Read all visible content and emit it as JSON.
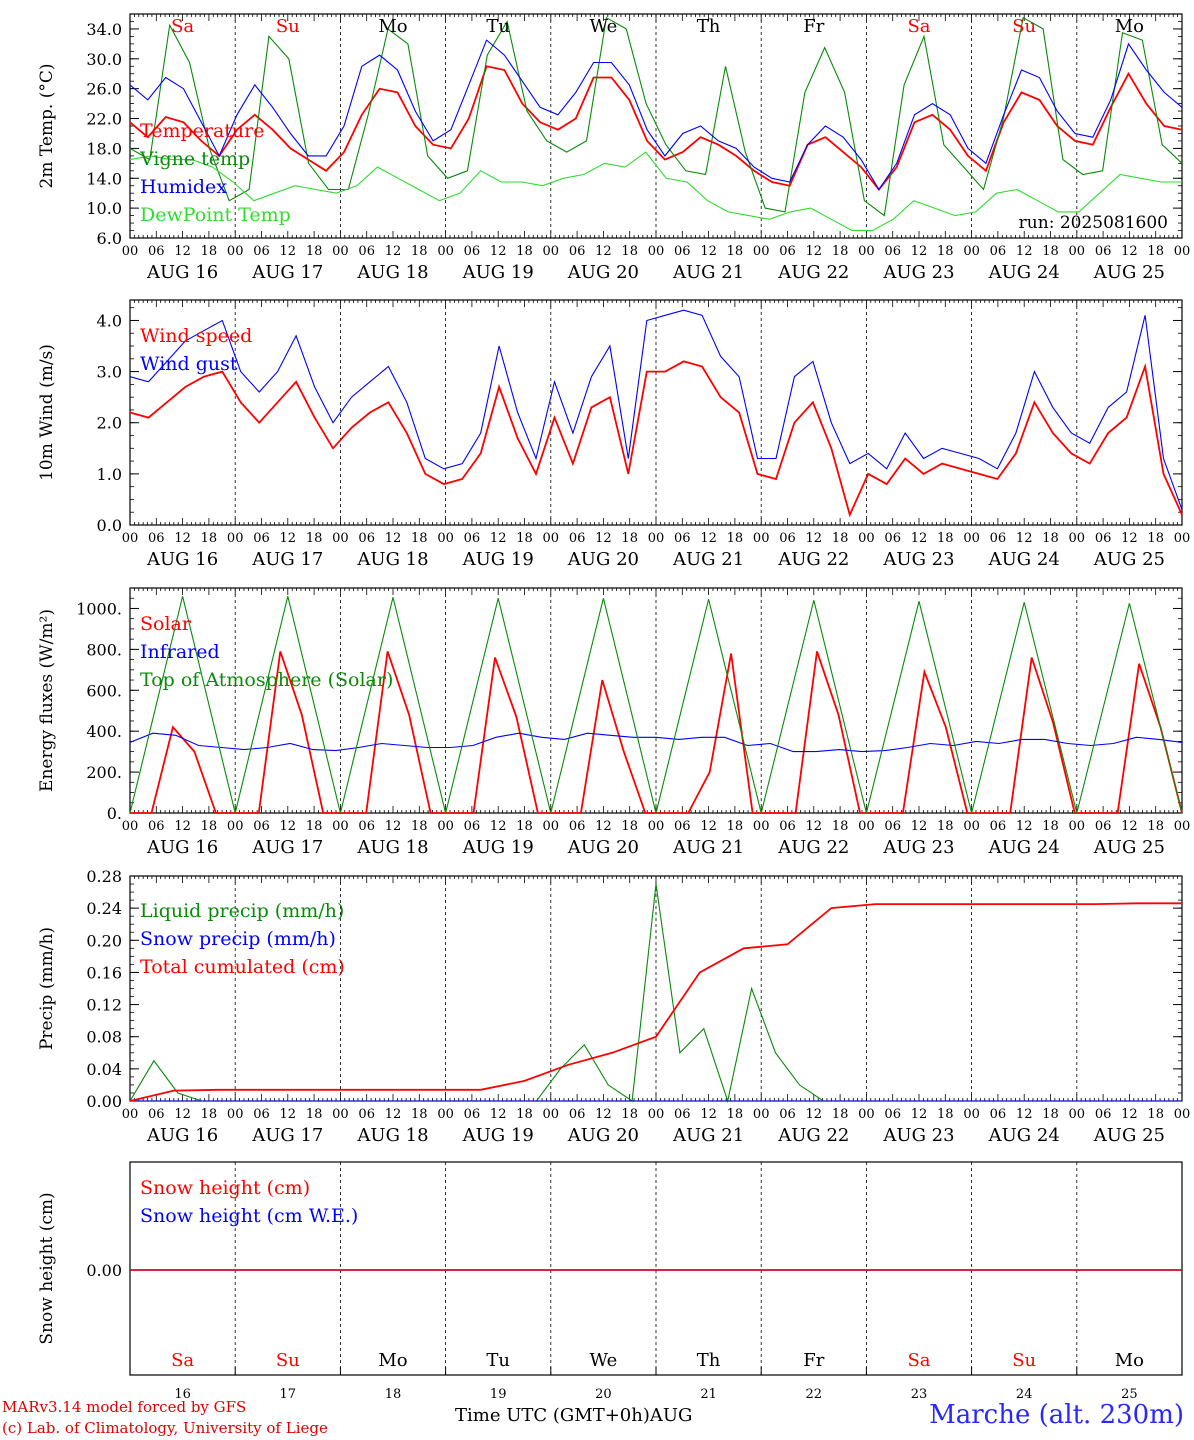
{
  "colors": {
    "red": "#ff0000",
    "green": "#0a8a0a",
    "blue": "#0000ff",
    "lightgreen": "#2fdc2f",
    "black": "#000000",
    "station": "#2828ff"
  },
  "footer": {
    "credit_line1": "MARv3.14 model forced by GFS",
    "credit_line2": "(c) Lab. of Climatology, University of Liege",
    "x_title": "Time UTC (GMT+0h)AUG",
    "station": "Marche (alt. 230m)"
  },
  "chart_data": [
    {
      "type": "line",
      "ylabel": "2m Temp. (°C)",
      "ylim": [
        6,
        36
      ],
      "yticks": [
        "6.0",
        "10.0",
        "14.0",
        "18.0",
        "22.0",
        "26.0",
        "30.0",
        "34.0"
      ],
      "x_hours_tick_labels": [
        "00",
        "06",
        "12",
        "18"
      ],
      "date_labels": [
        "AUG 16",
        "AUG 17",
        "AUG 18",
        "AUG 19",
        "AUG 20",
        "AUG 21",
        "AUG 22",
        "AUG 23",
        "AUG 24",
        "AUG 25"
      ],
      "weekday_labels": [
        "Sa",
        "Su",
        "Mo",
        "Tu",
        "We",
        "Th",
        "Fr",
        "Sa",
        "Su",
        "Mo"
      ],
      "weekday_colors": [
        "red",
        "red",
        "black",
        "black",
        "black",
        "black",
        "black",
        "red",
        "red",
        "black"
      ],
      "annotation": "run: 2025081600",
      "x_hour_step": 6,
      "series": [
        {
          "name": "Temperature",
          "color": "red",
          "values": [
            21.5,
            19.5,
            22.2,
            21.5,
            19.0,
            17.0,
            20.5,
            22.5,
            20.5,
            18.0,
            16.5,
            15.0,
            17.5,
            22.5,
            26.0,
            25.5,
            21.0,
            18.5,
            18.0,
            22.0,
            29.0,
            28.5,
            24.0,
            21.5,
            20.5,
            22.0,
            27.5,
            27.5,
            24.5,
            19.0,
            16.5,
            17.5,
            19.5,
            18.5,
            17.0,
            15.0,
            13.5,
            13.0,
            18.5,
            19.5,
            17.5,
            15.5,
            12.5,
            15.5,
            21.5,
            22.5,
            20.5,
            17.0,
            15.0,
            21.5,
            25.5,
            24.5,
            21.0,
            19.0,
            18.5,
            23.5,
            28.0,
            24.0,
            21.0,
            20.5
          ]
        },
        {
          "name": "Vigne temp",
          "color": "green",
          "values": [
            18.0,
            16.5,
            34.5,
            29.5,
            18.0,
            11.0,
            12.5,
            33.0,
            30.0,
            16.0,
            12.5,
            12.5,
            22.5,
            34.0,
            32.0,
            17.0,
            14.0,
            15.0,
            30.5,
            35.0,
            23.0,
            19.0,
            17.5,
            19.0,
            35.5,
            34.0,
            24.0,
            18.5,
            15.0,
            14.5,
            29.0,
            17.5,
            10.0,
            9.5,
            25.5,
            31.5,
            25.5,
            11.0,
            9.0,
            26.5,
            33.0,
            18.5,
            15.5,
            12.5,
            22.0,
            35.5,
            34.0,
            16.5,
            14.5,
            15.0,
            33.5,
            32.5,
            18.5,
            16.0
          ]
        },
        {
          "name": "Humidex",
          "color": "blue",
          "values": [
            26.5,
            24.5,
            27.5,
            26.0,
            21.5,
            17.0,
            22.5,
            26.5,
            23.5,
            20.0,
            17.0,
            17.0,
            21.0,
            29.0,
            30.5,
            28.5,
            23.0,
            19.0,
            20.5,
            26.5,
            32.5,
            30.5,
            27.0,
            23.5,
            22.5,
            25.5,
            29.5,
            29.5,
            26.5,
            20.5,
            17.0,
            20.0,
            21.0,
            19.0,
            18.0,
            15.5,
            14.0,
            13.5,
            18.5,
            21.0,
            19.5,
            16.5,
            12.5,
            16.0,
            22.5,
            24.0,
            22.5,
            18.0,
            16.0,
            22.5,
            28.5,
            27.5,
            23.0,
            20.0,
            19.5,
            24.5,
            32.0,
            28.5,
            25.5,
            23.5
          ]
        },
        {
          "name": "DewPoint Temp",
          "color": "lightgreen",
          "values": [
            16.5,
            17.0,
            16.5,
            16.5,
            15.5,
            13.5,
            11.0,
            12.0,
            13.0,
            12.5,
            12.0,
            13.0,
            15.5,
            14.0,
            12.5,
            11.0,
            12.0,
            15.0,
            13.5,
            13.5,
            13.0,
            14.0,
            14.5,
            16.0,
            15.5,
            17.5,
            14.0,
            13.5,
            11.0,
            9.5,
            9.0,
            8.5,
            9.5,
            10.0,
            8.5,
            7.0,
            7.0,
            8.5,
            11.0,
            10.0,
            9.0,
            9.5,
            12.0,
            12.5,
            11.0,
            9.5,
            9.5,
            12.0,
            14.5,
            14.0,
            13.5,
            13.5
          ]
        }
      ]
    },
    {
      "type": "line",
      "ylabel": "10m Wind (m/s)",
      "ylim": [
        0,
        4.4
      ],
      "yticks": [
        "0.0",
        "1.0",
        "2.0",
        "3.0",
        "4.0"
      ],
      "x_hours_tick_labels": [
        "00",
        "06",
        "12",
        "18"
      ],
      "date_labels": [
        "AUG 16",
        "AUG 17",
        "AUG 18",
        "AUG 19",
        "AUG 20",
        "AUG 21",
        "AUG 22",
        "AUG 23",
        "AUG 24",
        "AUG 25"
      ],
      "x_hour_step": 6,
      "series": [
        {
          "name": "Wind speed",
          "color": "red",
          "values": [
            2.2,
            2.1,
            2.4,
            2.7,
            2.9,
            3.0,
            2.4,
            2.0,
            2.4,
            2.8,
            2.1,
            1.5,
            1.9,
            2.2,
            2.4,
            1.8,
            1.0,
            0.8,
            0.9,
            1.4,
            2.7,
            1.7,
            1.0,
            2.1,
            1.2,
            2.3,
            2.5,
            1.0,
            3.0,
            3.0,
            3.2,
            3.1,
            2.5,
            2.2,
            1.0,
            0.9,
            2.0,
            2.4,
            1.5,
            0.2,
            1.0,
            0.8,
            1.3,
            1.0,
            1.2,
            1.1,
            1.0,
            0.9,
            1.4,
            2.4,
            1.8,
            1.4,
            1.2,
            1.8,
            2.1,
            3.1,
            1.0,
            0.2
          ]
        },
        {
          "name": "Wind gust",
          "color": "blue",
          "values": [
            2.9,
            2.8,
            3.2,
            3.6,
            3.8,
            4.0,
            3.0,
            2.6,
            3.0,
            3.7,
            2.7,
            2.0,
            2.5,
            2.8,
            3.1,
            2.4,
            1.3,
            1.1,
            1.2,
            1.8,
            3.5,
            2.2,
            1.3,
            2.8,
            1.8,
            2.9,
            3.5,
            1.3,
            4.0,
            4.1,
            4.2,
            4.1,
            3.3,
            2.9,
            1.3,
            1.3,
            2.9,
            3.2,
            2.0,
            1.2,
            1.4,
            1.1,
            1.8,
            1.3,
            1.5,
            1.4,
            1.3,
            1.1,
            1.8,
            3.0,
            2.3,
            1.8,
            1.6,
            2.3,
            2.6,
            4.1,
            1.3,
            0.3
          ]
        }
      ]
    },
    {
      "type": "line",
      "ylabel": "Energy fluxes (W/m²)",
      "ylim": [
        0,
        1100
      ],
      "yticks": [
        "0.",
        "200.",
        "400.",
        "600.",
        "800.",
        "1000."
      ],
      "x_hours_tick_labels": [
        "00",
        "06",
        "12",
        "18"
      ],
      "date_labels": [
        "AUG 16",
        "AUG 17",
        "AUG 18",
        "AUG 19",
        "AUG 20",
        "AUG 21",
        "AUG 22",
        "AUG 23",
        "AUG 24",
        "AUG 25"
      ],
      "x_hour_step": 6,
      "series": [
        {
          "name": "Solar",
          "color": "red",
          "values": [
            0,
            0,
            420,
            300,
            0,
            0,
            0,
            790,
            480,
            0,
            0,
            0,
            790,
            480,
            0,
            0,
            0,
            760,
            470,
            0,
            0,
            0,
            650,
            300,
            0,
            0,
            0,
            200,
            780,
            0,
            0,
            0,
            790,
            480,
            0,
            0,
            0,
            690,
            420,
            0,
            0,
            0,
            760,
            440,
            0,
            0,
            0,
            730,
            420,
            0
          ]
        },
        {
          "name": "Infrared",
          "color": "blue",
          "values": [
            345,
            390,
            380,
            330,
            320,
            310,
            320,
            340,
            310,
            305,
            320,
            340,
            330,
            320,
            320,
            330,
            370,
            390,
            370,
            360,
            390,
            380,
            370,
            370,
            360,
            370,
            370,
            330,
            340,
            300,
            300,
            310,
            300,
            305,
            320,
            340,
            330,
            350,
            340,
            360,
            360,
            340,
            330,
            340,
            370,
            360,
            345
          ]
        },
        {
          "name": "Top of Atmosphere (Solar)",
          "color": "green",
          "values": [
            0,
            1060,
            0,
            1060,
            0,
            1055,
            0,
            1050,
            0,
            1050,
            0,
            1045,
            0,
            1040,
            0,
            1035,
            0,
            1030,
            0,
            1025,
            0
          ]
        }
      ]
    },
    {
      "type": "line",
      "ylabel": "Precip (mm/h)",
      "ylim": [
        0,
        0.28
      ],
      "yticks": [
        "0.00",
        "0.04",
        "0.08",
        "0.12",
        "0.16",
        "0.20",
        "0.24",
        "0.28"
      ],
      "x_hours_tick_labels": [
        "00",
        "06",
        "12",
        "18"
      ],
      "date_labels": [
        "AUG 16",
        "AUG 17",
        "AUG 18",
        "AUG 19",
        "AUG 20",
        "AUG 21",
        "AUG 22",
        "AUG 23",
        "AUG 24",
        "AUG 25"
      ],
      "x_hour_step": 6,
      "series": [
        {
          "name": "Liquid precip (mm/h)",
          "color": "green",
          "values": [
            0,
            0.05,
            0.01,
            0,
            0,
            0,
            0,
            0,
            0,
            0,
            0,
            0,
            0,
            0,
            0,
            0,
            0,
            0,
            0.04,
            0.07,
            0.02,
            0,
            0.27,
            0.06,
            0.09,
            0,
            0.14,
            0.06,
            0.02,
            0,
            0,
            0,
            0,
            0,
            0,
            0,
            0,
            0,
            0,
            0,
            0,
            0,
            0,
            0,
            0
          ]
        },
        {
          "name": "Snow precip (mm/h)",
          "color": "blue",
          "values": [
            0,
            0,
            0,
            0,
            0,
            0,
            0,
            0,
            0,
            0,
            0,
            0,
            0,
            0,
            0,
            0,
            0,
            0,
            0,
            0,
            0,
            0,
            0
          ]
        },
        {
          "name": "Total cumulated (cm)",
          "color": "red",
          "values": [
            0,
            0.013,
            0.014,
            0.014,
            0.014,
            0.014,
            0.014,
            0.014,
            0.014,
            0.025,
            0.045,
            0.06,
            0.08,
            0.16,
            0.19,
            0.195,
            0.24,
            0.245,
            0.245,
            0.245,
            0.245,
            0.245,
            0.245,
            0.246,
            0.246
          ]
        }
      ]
    },
    {
      "type": "line",
      "ylabel": "Snow height (cm)",
      "ytick": "0.00",
      "day_numbers": [
        "16",
        "17",
        "18",
        "19",
        "20",
        "21",
        "22",
        "23",
        "24",
        "25"
      ],
      "weekday_labels": [
        "Sa",
        "Su",
        "Mo",
        "Tu",
        "We",
        "Th",
        "Fr",
        "Sa",
        "Su",
        "Mo"
      ],
      "weekday_colors": [
        "red",
        "red",
        "black",
        "black",
        "black",
        "black",
        "black",
        "red",
        "red",
        "black"
      ],
      "series": [
        {
          "name": "Snow height (cm)",
          "color": "red",
          "values": [
            0,
            0
          ]
        },
        {
          "name": "Snow height (cm W.E.)",
          "color": "blue",
          "values": [
            0,
            0
          ]
        }
      ]
    }
  ]
}
